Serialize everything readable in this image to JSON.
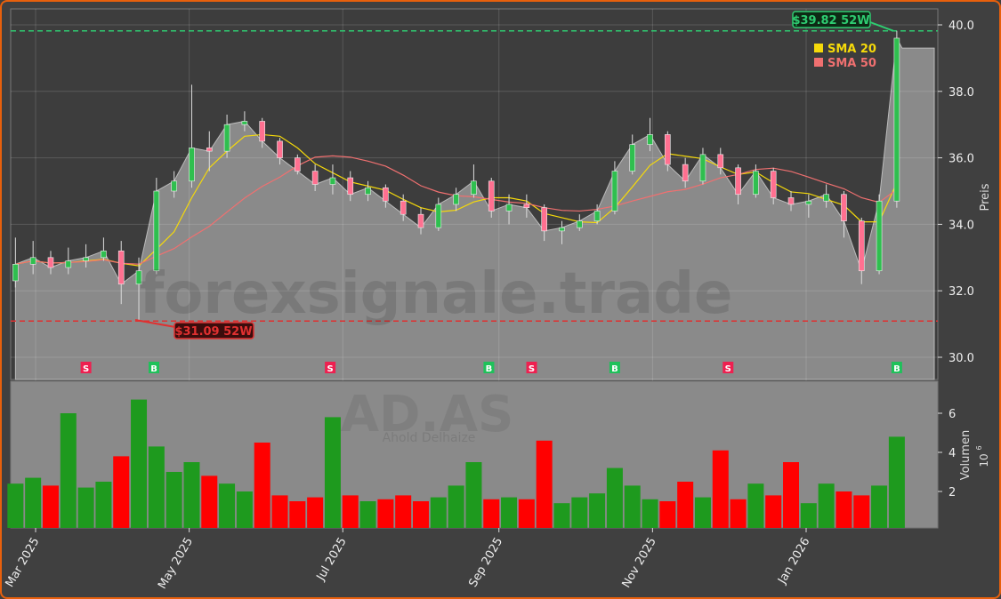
{
  "chart_data": [
    {
      "type": "candlestick",
      "ticker_watermark": "AD.AS",
      "company_watermark": "Ahold Delhaize",
      "site_watermark": "forexsignale.trade",
      "ylabel": "Preis",
      "ylim": [
        29.3,
        40.4
      ],
      "yticks": [
        "30.0",
        "32.0",
        "34.0",
        "36.0",
        "38.0",
        "40.0"
      ],
      "grid": true,
      "legend": {
        "placement": "top-right",
        "entries": [
          {
            "label": "SMA 20",
            "color": "#f5d90a"
          },
          {
            "label": "SMA 50",
            "color": "#f07070"
          }
        ]
      },
      "high_52w": {
        "value": 39.82,
        "label": "$39.82 52W",
        "color": "#2ecc71"
      },
      "low_52w": {
        "value": 31.09,
        "label": "$31.09 52W",
        "color": "#e03030"
      },
      "dates": [
        "2025-02-21",
        "2025-02-28",
        "2025-03-07",
        "2025-03-14",
        "2025-03-21",
        "2025-03-28",
        "2025-04-04",
        "2025-04-11",
        "2025-04-18",
        "2025-04-25",
        "2025-05-02",
        "2025-05-09",
        "2025-05-16",
        "2025-05-23",
        "2025-05-30",
        "2025-06-06",
        "2025-06-13",
        "2025-06-20",
        "2025-06-27",
        "2025-07-04",
        "2025-07-11",
        "2025-07-18",
        "2025-07-25",
        "2025-08-01",
        "2025-08-08",
        "2025-08-15",
        "2025-08-22",
        "2025-08-29",
        "2025-09-05",
        "2025-09-12",
        "2025-09-19",
        "2025-09-26",
        "2025-10-03",
        "2025-10-10",
        "2025-10-17",
        "2025-10-24",
        "2025-10-31",
        "2025-11-07",
        "2025-11-14",
        "2025-11-21",
        "2025-11-28",
        "2025-12-05",
        "2025-12-12",
        "2025-12-19",
        "2025-12-26",
        "2026-01-02",
        "2026-01-09",
        "2026-01-16",
        "2026-01-23",
        "2026-01-30",
        "2026-02-06"
      ],
      "open": [
        32.3,
        32.8,
        33.0,
        32.7,
        32.9,
        33.0,
        33.2,
        32.2,
        32.6,
        35.0,
        35.3,
        36.3,
        36.2,
        37.0,
        37.1,
        36.5,
        36.0,
        35.6,
        35.2,
        35.4,
        34.9,
        35.1,
        34.7,
        34.3,
        33.9,
        34.6,
        34.9,
        35.3,
        34.4,
        34.6,
        34.5,
        33.8,
        33.9,
        34.1,
        34.4,
        35.6,
        36.4,
        36.7,
        35.8,
        35.3,
        36.1,
        35.7,
        34.9,
        35.6,
        34.8,
        34.6,
        34.7,
        34.9,
        34.1,
        32.6,
        34.7
      ],
      "high": [
        33.6,
        33.5,
        33.2,
        33.3,
        33.4,
        33.6,
        33.5,
        33.0,
        35.4,
        35.6,
        38.2,
        36.8,
        37.3,
        37.4,
        37.2,
        36.6,
        36.1,
        35.8,
        35.8,
        35.6,
        35.3,
        35.2,
        34.9,
        34.5,
        34.8,
        35.1,
        35.8,
        35.4,
        34.9,
        34.9,
        34.6,
        34.1,
        34.3,
        34.6,
        35.9,
        36.7,
        37.2,
        36.8,
        36.0,
        36.3,
        36.3,
        35.8,
        35.8,
        35.7,
        35.0,
        34.9,
        35.2,
        35.0,
        34.2,
        34.9,
        39.82
      ],
      "low": [
        32.1,
        32.5,
        32.5,
        32.5,
        32.7,
        32.9,
        31.6,
        31.09,
        32.5,
        34.8,
        35.1,
        35.6,
        36.0,
        36.8,
        36.3,
        35.8,
        35.5,
        35.0,
        34.9,
        34.7,
        34.7,
        34.5,
        34.1,
        33.7,
        33.8,
        34.4,
        34.8,
        34.2,
        34.0,
        34.2,
        33.5,
        33.4,
        33.8,
        34.0,
        34.3,
        35.5,
        36.2,
        35.6,
        35.1,
        35.2,
        35.5,
        34.6,
        34.8,
        34.6,
        34.4,
        34.2,
        34.5,
        33.6,
        32.2,
        32.5,
        34.5
      ],
      "close": [
        32.8,
        33.0,
        32.7,
        32.9,
        33.0,
        33.2,
        32.2,
        32.6,
        35.0,
        35.3,
        36.3,
        36.2,
        37.0,
        37.1,
        36.5,
        36.0,
        35.6,
        35.2,
        35.4,
        34.9,
        35.1,
        34.7,
        34.3,
        33.9,
        34.6,
        34.9,
        35.3,
        34.4,
        34.6,
        34.5,
        33.8,
        33.9,
        34.1,
        34.4,
        35.6,
        36.4,
        36.7,
        35.8,
        35.3,
        36.1,
        35.7,
        34.9,
        35.6,
        34.8,
        34.6,
        34.7,
        34.9,
        34.1,
        32.6,
        34.7,
        39.6
      ],
      "signals": [
        {
          "date": "2025-03-21",
          "type": "S"
        },
        {
          "date": "2025-04-17",
          "type": "B"
        },
        {
          "date": "2025-06-26",
          "type": "S"
        },
        {
          "date": "2025-08-28",
          "type": "B"
        },
        {
          "date": "2025-09-14",
          "type": "S"
        },
        {
          "date": "2025-10-17",
          "type": "B"
        },
        {
          "date": "2025-12-01",
          "type": "S"
        },
        {
          "date": "2026-02-06",
          "type": "B"
        }
      ],
      "colors": {
        "up": "#2fbf4f",
        "down": "#ff7090",
        "buy": "#1fc15a",
        "sell": "#ee2050"
      }
    },
    {
      "type": "bar",
      "ylabel": "Volumen",
      "yunit": "10",
      "yunit_exp": "6",
      "yticks": [
        "2",
        "4",
        "6"
      ],
      "ylim": [
        0,
        7.5
      ],
      "values": [
        2.4,
        2.7,
        2.3,
        6.0,
        2.2,
        2.5,
        3.8,
        6.7,
        4.3,
        3.0,
        3.5,
        2.8,
        2.4,
        2.0,
        4.5,
        1.8,
        1.5,
        1.7,
        5.8,
        1.8,
        1.5,
        1.6,
        1.8,
        1.5,
        1.7,
        2.3,
        3.5,
        1.6,
        1.7,
        1.6,
        4.6,
        1.4,
        1.7,
        1.9,
        3.2,
        2.3,
        1.6,
        1.5,
        2.5,
        1.7,
        4.1,
        1.6,
        2.4,
        1.8,
        3.5,
        1.4,
        2.4,
        2.0,
        1.8,
        2.3,
        4.8
      ],
      "colors": {
        "up": "#1e9a1e",
        "down": "#ff0000"
      }
    }
  ],
  "xticks": [
    "Mar 2025",
    "May 2025",
    "Jul 2025",
    "Sep 2025",
    "Nov 2025",
    "Jan 2026"
  ],
  "xtick_dates": [
    "2025-03-01",
    "2025-05-01",
    "2025-07-01",
    "2025-09-01",
    "2025-11-01",
    "2026-01-01"
  ]
}
